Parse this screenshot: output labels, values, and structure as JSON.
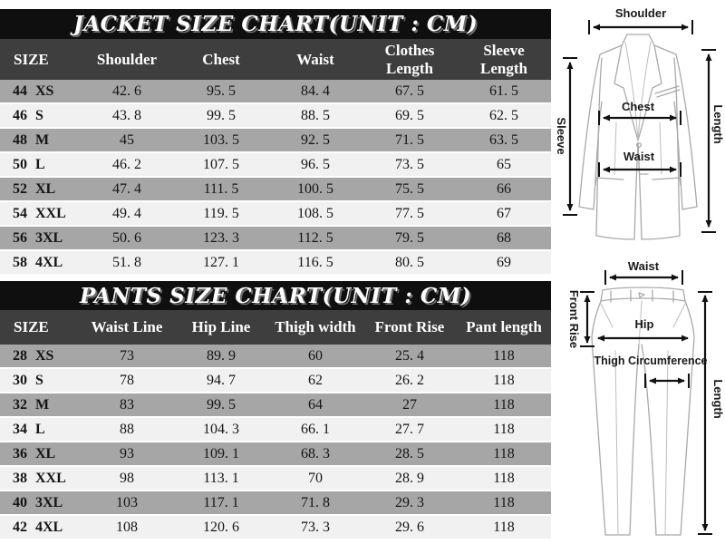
{
  "jacket_chart": {
    "title": "JACKET SIZE CHART(UNIT : CM)",
    "columns": [
      "SIZE",
      "Shoulder",
      "Chest",
      "Waist",
      "Clothes Length",
      "Sleeve Length"
    ],
    "rows": [
      {
        "size": "44",
        "label": "XS",
        "values": [
          "42. 6",
          "95. 5",
          "84. 4",
          "67. 5",
          "61. 5"
        ]
      },
      {
        "size": "46",
        "label": "S",
        "values": [
          "43. 8",
          "99. 5",
          "88. 5",
          "69. 5",
          "62. 5"
        ]
      },
      {
        "size": "48",
        "label": "M",
        "values": [
          "45",
          "103. 5",
          "92. 5",
          "71. 5",
          "63. 5"
        ]
      },
      {
        "size": "50",
        "label": "L",
        "values": [
          "46. 2",
          "107. 5",
          "96. 5",
          "73. 5",
          "65"
        ]
      },
      {
        "size": "52",
        "label": "XL",
        "values": [
          "47. 4",
          "111. 5",
          "100. 5",
          "75. 5",
          "66"
        ]
      },
      {
        "size": "54",
        "label": "XXL",
        "values": [
          "49. 4",
          "119. 5",
          "108. 5",
          "77. 5",
          "67"
        ]
      },
      {
        "size": "56",
        "label": "3XL",
        "values": [
          "50. 6",
          "123. 3",
          "112. 5",
          "79. 5",
          "68"
        ]
      },
      {
        "size": "58",
        "label": "4XL",
        "values": [
          "51. 8",
          "127. 1",
          "116. 5",
          "80. 5",
          "69"
        ]
      }
    ]
  },
  "pants_chart": {
    "title": "PANTS SIZE CHART(UNIT : CM)",
    "columns": [
      "SIZE",
      "Waist Line",
      "Hip Line",
      "Thigh width",
      "Front Rise",
      "Pant length"
    ],
    "rows": [
      {
        "size": "28",
        "label": "XS",
        "values": [
          "73",
          "89. 9",
          "60",
          "25. 4",
          "118"
        ]
      },
      {
        "size": "30",
        "label": "S",
        "values": [
          "78",
          "94. 7",
          "62",
          "26. 2",
          "118"
        ]
      },
      {
        "size": "32",
        "label": "M",
        "values": [
          "83",
          "99. 5",
          "64",
          "27",
          "118"
        ]
      },
      {
        "size": "34",
        "label": "L",
        "values": [
          "88",
          "104. 3",
          "66. 1",
          "27. 7",
          "118"
        ]
      },
      {
        "size": "36",
        "label": "XL",
        "values": [
          "93",
          "109. 1",
          "68. 3",
          "28. 5",
          "118"
        ]
      },
      {
        "size": "38",
        "label": "XXL",
        "values": [
          "98",
          "113. 1",
          "70",
          "28. 9",
          "118"
        ]
      },
      {
        "size": "40",
        "label": "3XL",
        "values": [
          "103",
          "117. 1",
          "71. 8",
          "29. 3",
          "118"
        ]
      },
      {
        "size": "42",
        "label": "4XL",
        "values": [
          "108",
          "120. 6",
          "73. 3",
          "29. 6",
          "118"
        ]
      }
    ]
  },
  "jacket_diagram": {
    "labels": {
      "shoulder": "Shoulder",
      "chest": "Chest",
      "waist": "Waist",
      "sleeve": "Sleeve",
      "length": "Length"
    }
  },
  "pants_diagram": {
    "labels": {
      "waist": "Waist",
      "front_rise": "Front Rise",
      "hip": "Hip",
      "thigh": "Thigh Circumference",
      "length": "Length"
    }
  },
  "colors": {
    "title_bar_bg": "#0f0f0f",
    "title_text": "#ffffff",
    "header_bg": "#3e3e3e",
    "header_text": "#ffffff",
    "row_gray": "#a6a6a6",
    "row_light": "#f1f1f1",
    "diagram_line": "#a9a9a9",
    "measure_color": "#111111"
  }
}
